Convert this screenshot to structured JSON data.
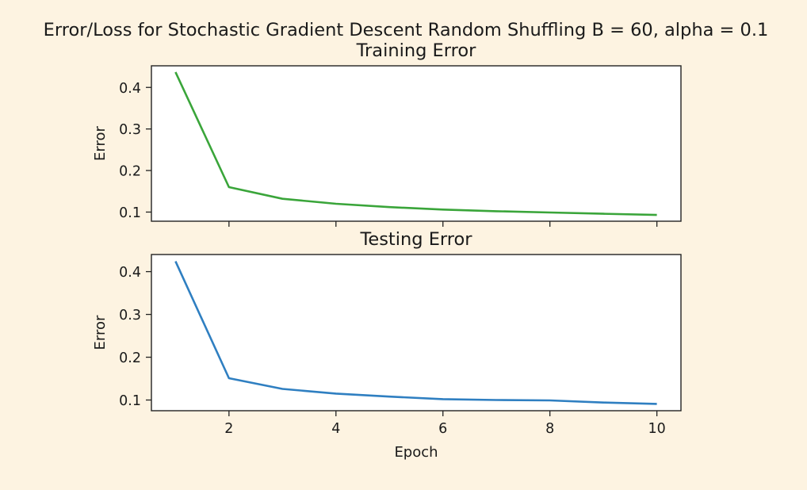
{
  "figure": {
    "suptitle": "Error/Loss for Stochastic Gradient Descent Random Shuffling B = 60, alpha = 0.1",
    "background": "#fdf3e1"
  },
  "chart_data": [
    {
      "type": "line",
      "title": "Training Error",
      "xlabel": "",
      "ylabel": "Error",
      "x": [
        1,
        2,
        3,
        4,
        5,
        6,
        7,
        8,
        9,
        10
      ],
      "series": [
        {
          "values": [
            0.437,
            0.16,
            0.132,
            0.12,
            0.112,
            0.106,
            0.102,
            0.099,
            0.096,
            0.093
          ],
          "color": "#3aa53a"
        }
      ],
      "xlim": [
        0.55,
        10.45
      ],
      "ylim": [
        0.078,
        0.452
      ],
      "xticks": [
        2,
        4,
        6,
        8,
        10
      ],
      "xticklabels": [
        "",
        "",
        "",
        "",
        ""
      ],
      "yticks": [
        0.1,
        0.2,
        0.3,
        0.4
      ],
      "yticklabels": [
        "0.1",
        "0.2",
        "0.3",
        "0.4"
      ],
      "grid": false,
      "legend": "none"
    },
    {
      "type": "line",
      "title": "Testing Error",
      "xlabel": "Epoch",
      "ylabel": "Error",
      "x": [
        1,
        2,
        3,
        4,
        5,
        6,
        7,
        8,
        9,
        10
      ],
      "series": [
        {
          "values": [
            0.424,
            0.151,
            0.126,
            0.115,
            0.108,
            0.102,
            0.1,
            0.099,
            0.094,
            0.091
          ],
          "color": "#2f7fc1"
        }
      ],
      "xlim": [
        0.55,
        10.45
      ],
      "ylim": [
        0.075,
        0.44
      ],
      "xticks": [
        2,
        4,
        6,
        8,
        10
      ],
      "xticklabels": [
        "2",
        "4",
        "6",
        "8",
        "10"
      ],
      "yticks": [
        0.1,
        0.2,
        0.3,
        0.4
      ],
      "yticklabels": [
        "0.1",
        "0.2",
        "0.3",
        "0.4"
      ],
      "grid": false,
      "legend": "none"
    }
  ]
}
